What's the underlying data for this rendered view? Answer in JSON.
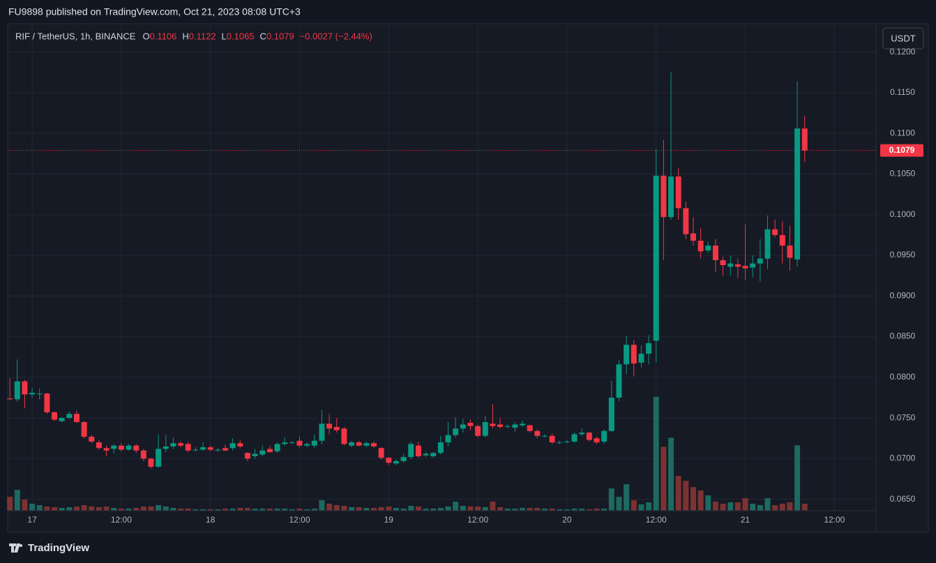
{
  "page": {
    "published": "FU9898 published on TradingView.com, Oct 21, 2023 08:08 UTC+3",
    "brand": "TradingView",
    "currency_button": "USDT"
  },
  "chart_data": {
    "type": "candlestick",
    "symbol": "RIF / TetherUS, 1h, BINANCE",
    "ohlc_legend": [
      {
        "label": "O",
        "value": "0.1106"
      },
      {
        "label": "H",
        "value": "0.1122"
      },
      {
        "label": "L",
        "value": "0.1065"
      },
      {
        "label": "C",
        "value": "0.1079"
      }
    ],
    "change": "−0.0027 (−2.44%)",
    "up_color": "#089981",
    "down_color": "#f23645",
    "volume_up_color": "#1d6a61",
    "volume_down_color": "#7d3232",
    "last_price": {
      "value": 0.1079,
      "label": "0.1079"
    },
    "xlim": [
      -3.2,
      113.6
    ],
    "xticks": [
      {
        "value": 0,
        "label": "17"
      },
      {
        "value": 12,
        "label": "12:00"
      },
      {
        "value": 24,
        "label": "18"
      },
      {
        "value": 36,
        "label": "12:00"
      },
      {
        "value": 48,
        "label": "19"
      },
      {
        "value": 60,
        "label": "12:00"
      },
      {
        "value": 72,
        "label": "20"
      },
      {
        "value": 84,
        "label": "12:00"
      },
      {
        "value": 96,
        "label": "21"
      },
      {
        "value": 108,
        "label": "12:00"
      }
    ],
    "ylim": [
      0.0636,
      0.1234
    ],
    "yticks": [
      {
        "value": 0.065,
        "label": "0.0650"
      },
      {
        "value": 0.07,
        "label": "0.0700"
      },
      {
        "value": 0.075,
        "label": "0.0750"
      },
      {
        "value": 0.08,
        "label": "0.0800"
      },
      {
        "value": 0.085,
        "label": "0.0850"
      },
      {
        "value": 0.09,
        "label": "0.0900"
      },
      {
        "value": 0.095,
        "label": "0.0950"
      },
      {
        "value": 0.1,
        "label": "0.1000"
      },
      {
        "value": 0.105,
        "label": "0.1050"
      },
      {
        "value": 0.11,
        "label": "0.1100"
      },
      {
        "value": 0.115,
        "label": "0.1150"
      },
      {
        "value": 0.12,
        "label": "0.1200"
      }
    ],
    "vlim": [
      0,
      700
    ],
    "grid": true,
    "x": [
      -3,
      -2,
      -1,
      0,
      1,
      2,
      3,
      4,
      5,
      6,
      7,
      8,
      9,
      10,
      11,
      12,
      13,
      14,
      15,
      16,
      17,
      18,
      19,
      20,
      21,
      22,
      23,
      24,
      25,
      26,
      27,
      28,
      29,
      30,
      31,
      32,
      33,
      34,
      35,
      36,
      37,
      38,
      39,
      40,
      41,
      42,
      43,
      44,
      45,
      46,
      47,
      48,
      49,
      50,
      51,
      52,
      53,
      54,
      55,
      56,
      57,
      58,
      59,
      60,
      61,
      62,
      63,
      64,
      65,
      66,
      67,
      68,
      69,
      70,
      71,
      72,
      73,
      74,
      75,
      76,
      77,
      78,
      79,
      80,
      81,
      82,
      83,
      84,
      85,
      86,
      87,
      88,
      89,
      90,
      91,
      92,
      93,
      94,
      95,
      96,
      97,
      98,
      99,
      100,
      101,
      102,
      103,
      104
    ],
    "open": [
      0.0774,
      0.0773,
      0.0795,
      0.0779,
      0.078,
      0.078,
      0.0757,
      0.0746,
      0.075,
      0.0755,
      0.0745,
      0.0727,
      0.072,
      0.0713,
      0.0712,
      0.0716,
      0.0711,
      0.0716,
      0.071,
      0.07,
      0.069,
      0.0712,
      0.0715,
      0.0719,
      0.0718,
      0.0711,
      0.0711,
      0.0714,
      0.071,
      0.0713,
      0.0713,
      0.0719,
      0.0707,
      0.0703,
      0.0705,
      0.0712,
      0.0709,
      0.0718,
      0.072,
      0.0722,
      0.0716,
      0.0716,
      0.0722,
      0.0743,
      0.0739,
      0.0737,
      0.0716,
      0.072,
      0.0716,
      0.0719,
      0.0713,
      0.0701,
      0.0694,
      0.0697,
      0.0702,
      0.0716,
      0.0704,
      0.0703,
      0.0707,
      0.072,
      0.0729,
      0.0737,
      0.0744,
      0.074,
      0.0728,
      0.0743,
      0.0742,
      0.074,
      0.0738,
      0.0741,
      0.0741,
      0.0734,
      0.0728,
      0.0728,
      0.072,
      0.0721,
      0.0721,
      0.073,
      0.0732,
      0.0725,
      0.0721,
      0.0734,
      0.0775,
      0.0816,
      0.084,
      0.0818,
      0.0829,
      0.0845,
      0.1048,
      0.0997,
      0.1047,
      0.1008,
      0.0977,
      0.0968,
      0.0956,
      0.0962,
      0.0944,
      0.0936,
      0.0939,
      0.0937,
      0.0935,
      0.094,
      0.0946,
      0.0982,
      0.0975,
      0.0962,
      0.0945,
      0.1106
    ],
    "high": [
      0.0799,
      0.0822,
      0.0797,
      0.0787,
      0.0786,
      0.0781,
      0.0758,
      0.0751,
      0.0758,
      0.0759,
      0.0746,
      0.0729,
      0.0723,
      0.0716,
      0.0718,
      0.0719,
      0.0718,
      0.0718,
      0.0712,
      0.0701,
      0.073,
      0.0729,
      0.0726,
      0.0721,
      0.0721,
      0.0714,
      0.072,
      0.0716,
      0.0713,
      0.0717,
      0.0725,
      0.0723,
      0.0708,
      0.0712,
      0.0716,
      0.0716,
      0.072,
      0.0726,
      0.0722,
      0.0727,
      0.072,
      0.073,
      0.076,
      0.0755,
      0.075,
      0.0739,
      0.0722,
      0.0722,
      0.0721,
      0.0721,
      0.0714,
      0.0702,
      0.0699,
      0.0706,
      0.0721,
      0.0721,
      0.0708,
      0.0708,
      0.0728,
      0.0745,
      0.0751,
      0.0749,
      0.0748,
      0.0742,
      0.0753,
      0.0767,
      0.075,
      0.0742,
      0.0745,
      0.0747,
      0.0742,
      0.0736,
      0.073,
      0.0731,
      0.0722,
      0.0723,
      0.0732,
      0.0737,
      0.0733,
      0.0727,
      0.0736,
      0.0796,
      0.0821,
      0.0851,
      0.0846,
      0.0839,
      0.0852,
      0.108,
      0.1092,
      0.1175,
      0.1057,
      0.1016,
      0.0997,
      0.0983,
      0.0967,
      0.097,
      0.0948,
      0.095,
      0.0946,
      0.0988,
      0.095,
      0.097,
      0.0999,
      0.0994,
      0.0992,
      0.0986,
      0.1164,
      0.1122
    ],
    "low": [
      0.0772,
      0.077,
      0.0762,
      0.0775,
      0.0773,
      0.0755,
      0.0746,
      0.0745,
      0.0749,
      0.0744,
      0.0725,
      0.0719,
      0.0711,
      0.0703,
      0.0706,
      0.0709,
      0.071,
      0.0707,
      0.0697,
      0.0688,
      0.0689,
      0.0708,
      0.0712,
      0.0714,
      0.0708,
      0.0709,
      0.071,
      0.0709,
      0.0708,
      0.0709,
      0.071,
      0.0713,
      0.0697,
      0.07,
      0.0703,
      0.0707,
      0.0707,
      0.0716,
      0.0718,
      0.0714,
      0.0714,
      0.0713,
      0.0718,
      0.073,
      0.0732,
      0.0716,
      0.0714,
      0.0715,
      0.0714,
      0.0713,
      0.0699,
      0.0692,
      0.0692,
      0.0695,
      0.0699,
      0.0701,
      0.0702,
      0.0701,
      0.0705,
      0.0715,
      0.0726,
      0.0732,
      0.0735,
      0.0726,
      0.0726,
      0.0737,
      0.0737,
      0.0737,
      0.0733,
      0.0739,
      0.0732,
      0.0725,
      0.0726,
      0.0718,
      0.0718,
      0.0719,
      0.0719,
      0.0728,
      0.0721,
      0.0718,
      0.0718,
      0.0733,
      0.0771,
      0.0804,
      0.0801,
      0.0812,
      0.0816,
      0.0818,
      0.0944,
      0.0994,
      0.0994,
      0.097,
      0.0962,
      0.0946,
      0.0953,
      0.093,
      0.0925,
      0.0925,
      0.0922,
      0.092,
      0.0923,
      0.0918,
      0.0933,
      0.0972,
      0.094,
      0.0931,
      0.0936,
      0.1065
    ],
    "close": [
      0.0773,
      0.0795,
      0.0779,
      0.0781,
      0.078,
      0.0757,
      0.0748,
      0.075,
      0.0755,
      0.0745,
      0.0727,
      0.0721,
      0.0713,
      0.071,
      0.0716,
      0.0711,
      0.0716,
      0.071,
      0.07,
      0.069,
      0.0712,
      0.0715,
      0.0719,
      0.0716,
      0.071,
      0.0711,
      0.0714,
      0.0711,
      0.0711,
      0.071,
      0.0719,
      0.0715,
      0.07,
      0.0706,
      0.071,
      0.0708,
      0.0718,
      0.072,
      0.072,
      0.0716,
      0.0718,
      0.0722,
      0.0743,
      0.0737,
      0.0735,
      0.0718,
      0.072,
      0.0716,
      0.0719,
      0.0715,
      0.0701,
      0.0695,
      0.0697,
      0.0702,
      0.0718,
      0.0703,
      0.0706,
      0.0707,
      0.072,
      0.0729,
      0.0737,
      0.0742,
      0.074,
      0.0728,
      0.0745,
      0.074,
      0.0739,
      0.074,
      0.0742,
      0.0743,
      0.0734,
      0.0728,
      0.0728,
      0.072,
      0.072,
      0.0721,
      0.073,
      0.0732,
      0.0723,
      0.072,
      0.0734,
      0.0775,
      0.0816,
      0.084,
      0.0817,
      0.0829,
      0.0842,
      0.1048,
      0.0997,
      0.1047,
      0.1008,
      0.0976,
      0.0968,
      0.0955,
      0.0962,
      0.0944,
      0.0938,
      0.094,
      0.0936,
      0.0934,
      0.094,
      0.0946,
      0.0982,
      0.0975,
      0.0962,
      0.0947,
      0.1106,
      0.1079
    ],
    "volume": [
      20,
      30,
      16,
      10,
      8,
      6,
      5,
      4,
      5,
      6,
      8,
      6,
      5,
      6,
      4,
      3,
      3,
      4,
      6,
      6,
      8,
      6,
      4,
      3,
      3,
      2,
      2,
      2,
      2,
      3,
      3,
      4,
      4,
      3,
      3,
      3,
      3,
      3,
      2,
      3,
      2,
      3,
      15,
      10,
      8,
      7,
      5,
      5,
      4,
      4,
      5,
      6,
      4,
      3,
      7,
      6,
      3,
      3,
      4,
      6,
      13,
      7,
      6,
      6,
      5,
      13,
      5,
      3,
      3,
      4,
      4,
      4,
      3,
      3,
      2,
      2,
      3,
      3,
      2,
      3,
      3,
      32,
      20,
      38,
      15,
      9,
      12,
      164,
      92,
      105,
      50,
      43,
      34,
      29,
      22,
      13,
      10,
      12,
      12,
      18,
      10,
      8,
      18,
      8,
      10,
      12,
      94,
      10
    ]
  }
}
